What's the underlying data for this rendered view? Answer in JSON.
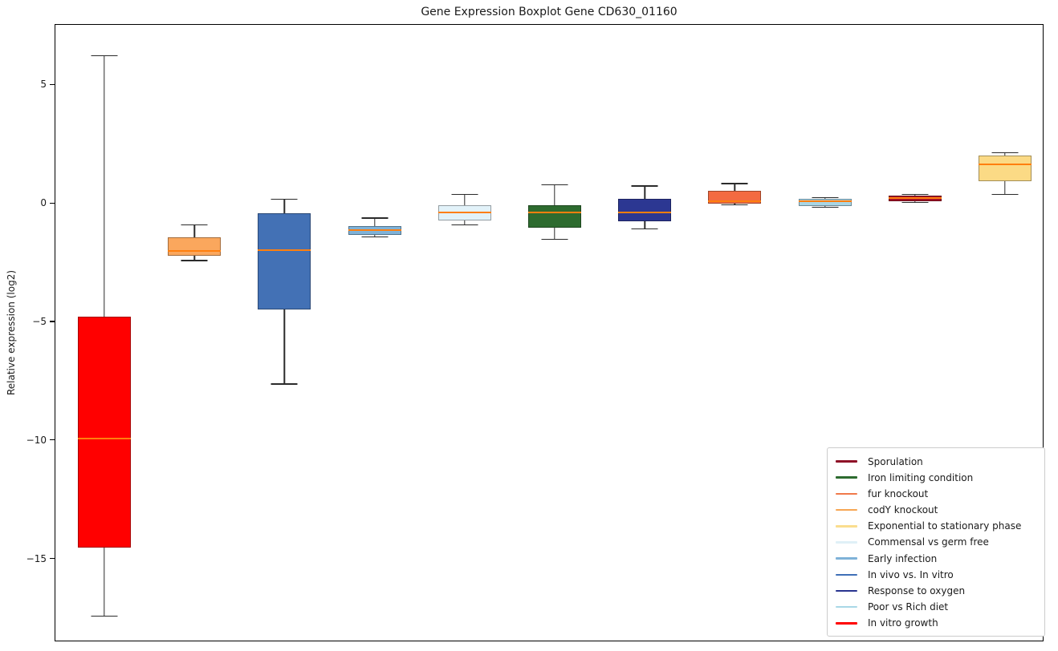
{
  "chart_data": {
    "type": "boxplot",
    "title": "Gene Expression Boxplot Gene CD630_01160",
    "xlabel": "",
    "ylabel": "Relative expression (log2)",
    "ylim": [
      -18.5,
      7.55
    ],
    "yticks": [
      5,
      0,
      -5,
      -10,
      -15
    ],
    "grid": false,
    "median_color": "#ff7f0e",
    "whisker_color": "#2b2b2b",
    "categories": [
      "In vitro growth",
      "codY knockout",
      "In vivo vs. In vitro",
      "Early infection",
      "Commensal vs germ free",
      "Iron limiting condition",
      "Response to oxygen",
      "fur knockout",
      "Poor vs Rich diet",
      "Sporulation",
      "Exponential to stationary phase"
    ],
    "series": [
      {
        "name": "In vitro growth",
        "color": "#ff0000",
        "whisker_low": -17.4,
        "q1": -14.5,
        "median": -9.9,
        "q3": -4.75,
        "whisker_high": 6.25
      },
      {
        "name": "codY knockout",
        "color": "#faa75d",
        "whisker_low": -2.4,
        "q1": -2.2,
        "median": -2.0,
        "q3": -1.4,
        "whisker_high": -0.9
      },
      {
        "name": "In vivo vs. In vitro",
        "color": "#4371b5",
        "whisker_low": -7.6,
        "q1": -4.45,
        "median": -1.95,
        "q3": -0.4,
        "whisker_high": 0.2
      },
      {
        "name": "Early infection",
        "color": "#7fb2d8",
        "whisker_low": -1.4,
        "q1": -1.3,
        "median": -1.1,
        "q3": -0.95,
        "whisker_high": -0.6
      },
      {
        "name": "Commensal vs germ free",
        "color": "#e2f2f9",
        "whisker_low": -0.9,
        "q1": -0.7,
        "median": -0.35,
        "q3": -0.05,
        "whisker_high": 0.4
      },
      {
        "name": "Iron limiting condition",
        "color": "#2d6b2f",
        "whisker_low": -1.5,
        "q1": -1.0,
        "median": -0.35,
        "q3": -0.05,
        "whisker_high": 0.8
      },
      {
        "name": "Response to oxygen",
        "color": "#2c3792",
        "whisker_low": -1.05,
        "q1": -0.75,
        "median": -0.35,
        "q3": 0.2,
        "whisker_high": 0.75
      },
      {
        "name": "fur knockout",
        "color": "#f36a41",
        "whisker_low": -0.05,
        "q1": 0.0,
        "median": 0.1,
        "q3": 0.55,
        "whisker_high": 0.85
      },
      {
        "name": "Poor vs Rich diet",
        "color": "#a9d5e5",
        "whisker_low": -0.15,
        "q1": -0.1,
        "median": 0.1,
        "q3": 0.2,
        "whisker_high": 0.25
      },
      {
        "name": "Sporulation",
        "color": "#a50f25",
        "whisker_low": 0.05,
        "q1": 0.1,
        "median": 0.25,
        "q3": 0.35,
        "whisker_high": 0.4
      },
      {
        "name": "Exponential to stationary phase",
        "color": "#fbda85",
        "whisker_low": 0.4,
        "q1": 0.95,
        "median": 1.65,
        "q3": 2.05,
        "whisker_high": 2.15
      }
    ],
    "legend": {
      "position": "lower right",
      "entries": [
        {
          "label": "Sporulation",
          "color": "#8e1127"
        },
        {
          "label": "Iron limiting condition",
          "color": "#2d6b2f"
        },
        {
          "label": "fur knockout",
          "color": "#f0794a"
        },
        {
          "label": "codY knockout",
          "color": "#f7a653"
        },
        {
          "label": "Exponential to stationary phase",
          "color": "#fadd8e"
        },
        {
          "label": "Commensal vs germ free",
          "color": "#dff0f7"
        },
        {
          "label": "Early infection",
          "color": "#7fb2d8"
        },
        {
          "label": "In vivo vs. In vitro",
          "color": "#3f6fb7"
        },
        {
          "label": "Response to oxygen",
          "color": "#28348f"
        },
        {
          "label": "Poor vs Rich diet",
          "color": "#a9d8e6"
        },
        {
          "label": "In vitro growth",
          "color": "#ff0000"
        }
      ]
    }
  }
}
